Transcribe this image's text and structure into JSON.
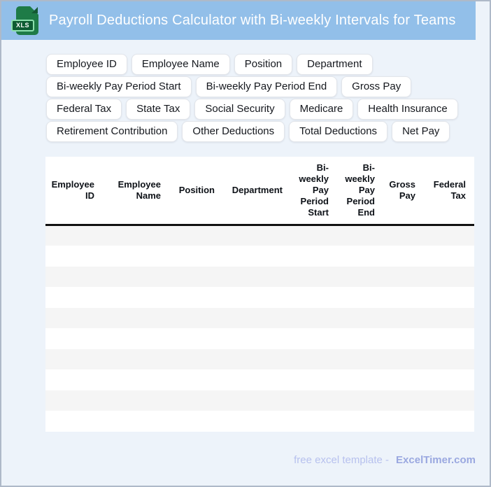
{
  "header": {
    "icon_label": "XLS",
    "title": "Payroll Deductions Calculator with Bi-weekly Intervals for Teams"
  },
  "chips": [
    "Employee ID",
    "Employee Name",
    "Position",
    "Department",
    "Bi-weekly Pay Period Start",
    "Bi-weekly Pay Period End",
    "Gross Pay",
    "Federal Tax",
    "State Tax",
    "Social Security",
    "Medicare",
    "Health Insurance",
    "Retirement Contribution",
    "Other Deductions",
    "Total Deductions",
    "Net Pay"
  ],
  "table": {
    "columns": [
      "Employee ID",
      "Employee Name",
      "Position",
      "Department",
      "Bi-weekly Pay Period Start",
      "Bi-weekly Pay Period End",
      "Gross Pay",
      "Federal Tax"
    ],
    "row_count": 10
  },
  "footer": {
    "text": "free excel template -",
    "brand": "ExcelTimer.com"
  },
  "colors": {
    "header_bg": "#92bfe9",
    "page_bg": "#edf3fa",
    "stripe": "#f5f5f5",
    "icon_green": "#1e7b47",
    "icon_badge": "#0d5c33",
    "footer_text": "#b7c1ee",
    "footer_brand": "#9aa8e0"
  }
}
